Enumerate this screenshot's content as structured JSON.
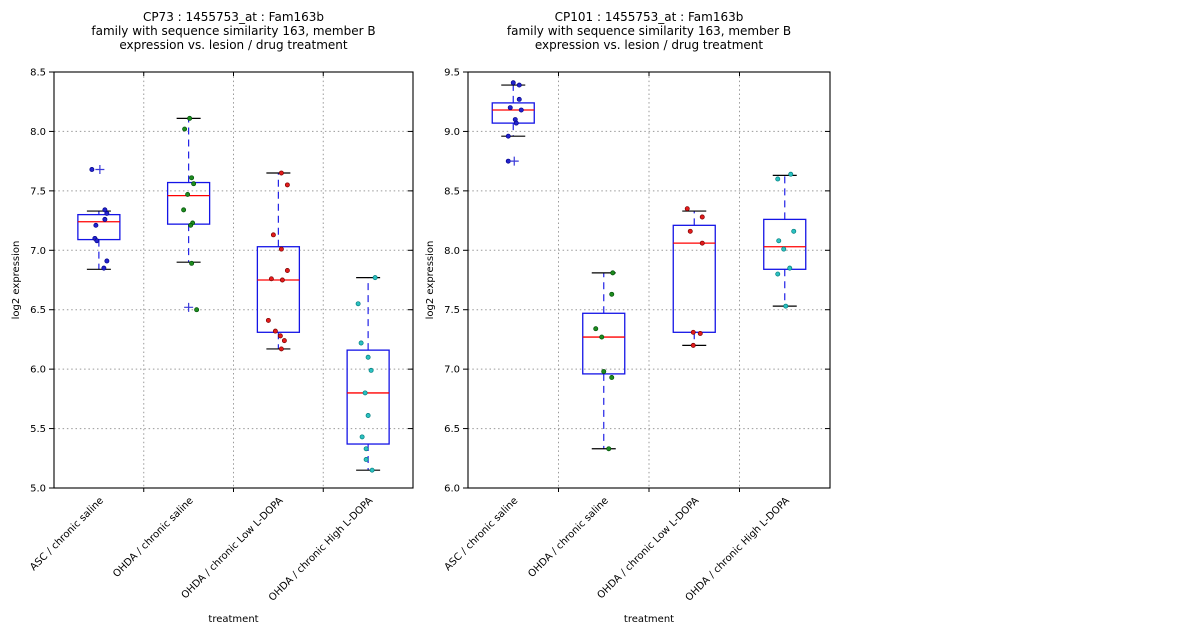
{
  "figure": {
    "background": "#ffffff",
    "xlabel": "treatment",
    "ylabel": "log2 expression"
  },
  "style": {
    "box_color": "#1414e6",
    "median_color": "#ff0000",
    "whisker_color": "#2222e6",
    "cap_color": "#000000",
    "flier_color": "#3a3ad9",
    "grid_color": "#9a9a9a",
    "frame_color": "#000000"
  },
  "chart_data": [
    {
      "type": "boxplot-scatter",
      "panel_id": "CP73",
      "title_lines": [
        "CP73 : 1455753_at : Fam163b",
        "family with sequence similarity 163, member B",
        "expression vs. lesion / drug treatment"
      ],
      "xlabel": "treatment",
      "ylabel": "log2 expression",
      "ylim": [
        5.0,
        8.5
      ],
      "ytick_step": 0.5,
      "grid": true,
      "categories": [
        "ASC / chronic saline",
        "OHDA / chronic saline",
        "OHDA / chronic Low L-DOPA",
        "OHDA / chronic High L-DOPA"
      ],
      "groups": [
        {
          "label": "ASC / chronic saline",
          "point_color": "#2323cc",
          "point_edge": "#00008b",
          "box": {
            "whisker_low": 6.84,
            "q1": 7.09,
            "median": 7.24,
            "q3": 7.3,
            "whisker_high": 7.33
          },
          "outliers_plus": [
            {
              "v": 7.68,
              "dx": 1
            }
          ],
          "points": [
            {
              "v": 7.68,
              "dx": -7
            },
            {
              "v": 7.34,
              "dx": 6
            },
            {
              "v": 7.31,
              "dx": 8
            },
            {
              "v": 7.26,
              "dx": 6
            },
            {
              "v": 7.21,
              "dx": -3
            },
            {
              "v": 7.1,
              "dx": -4
            },
            {
              "v": 7.08,
              "dx": -2
            },
            {
              "v": 6.91,
              "dx": 8
            },
            {
              "v": 6.85,
              "dx": 5
            }
          ]
        },
        {
          "label": "OHDA / chronic saline",
          "point_color": "#1e8c1e",
          "point_edge": "#00500a",
          "box": {
            "whisker_low": 6.9,
            "q1": 7.22,
            "median": 7.46,
            "q3": 7.57,
            "whisker_high": 8.11
          },
          "outliers_plus": [
            {
              "v": 6.52,
              "dx": 0
            }
          ],
          "points": [
            {
              "v": 8.11,
              "dx": 1
            },
            {
              "v": 8.02,
              "dx": -4
            },
            {
              "v": 7.61,
              "dx": 3
            },
            {
              "v": 7.56,
              "dx": 5
            },
            {
              "v": 7.47,
              "dx": -1
            },
            {
              "v": 7.34,
              "dx": -5
            },
            {
              "v": 7.23,
              "dx": 4
            },
            {
              "v": 7.21,
              "dx": 2
            },
            {
              "v": 6.89,
              "dx": 3
            },
            {
              "v": 6.5,
              "dx": 8
            }
          ]
        },
        {
          "label": "OHDA / chronic Low L-DOPA",
          "point_color": "#e31b1b",
          "point_edge": "#7a0000",
          "box": {
            "whisker_low": 6.17,
            "q1": 6.31,
            "median": 6.75,
            "q3": 7.03,
            "whisker_high": 7.65
          },
          "outliers_plus": [],
          "points": [
            {
              "v": 7.65,
              "dx": 3
            },
            {
              "v": 7.55,
              "dx": 9
            },
            {
              "v": 7.13,
              "dx": -5
            },
            {
              "v": 7.01,
              "dx": 3
            },
            {
              "v": 6.83,
              "dx": 9
            },
            {
              "v": 6.76,
              "dx": -7
            },
            {
              "v": 6.75,
              "dx": 4
            },
            {
              "v": 6.41,
              "dx": -10
            },
            {
              "v": 6.32,
              "dx": -3
            },
            {
              "v": 6.28,
              "dx": 2
            },
            {
              "v": 6.24,
              "dx": 6
            },
            {
              "v": 6.17,
              "dx": 3
            }
          ]
        },
        {
          "label": "OHDA / chronic High L-DOPA",
          "point_color": "#2cc1c1",
          "point_edge": "#007d7d",
          "box": {
            "whisker_low": 5.15,
            "q1": 5.37,
            "median": 5.8,
            "q3": 6.16,
            "whisker_high": 6.77
          },
          "outliers_plus": [],
          "points": [
            {
              "v": 6.77,
              "dx": 7
            },
            {
              "v": 6.55,
              "dx": -10
            },
            {
              "v": 6.22,
              "dx": -7
            },
            {
              "v": 6.1,
              "dx": 0
            },
            {
              "v": 5.99,
              "dx": 3
            },
            {
              "v": 5.8,
              "dx": -3
            },
            {
              "v": 5.61,
              "dx": 0
            },
            {
              "v": 5.43,
              "dx": -6
            },
            {
              "v": 5.33,
              "dx": -2
            },
            {
              "v": 5.24,
              "dx": -2
            },
            {
              "v": 5.15,
              "dx": 4
            }
          ]
        }
      ]
    },
    {
      "type": "boxplot-scatter",
      "panel_id": "CP101",
      "title_lines": [
        "CP101 : 1455753_at : Fam163b",
        "family with sequence similarity 163, member B",
        "expression vs. lesion / drug treatment"
      ],
      "xlabel": "treatment",
      "ylabel": "log2 expression",
      "ylim": [
        6.0,
        9.5
      ],
      "ytick_step": 0.5,
      "grid": true,
      "categories": [
        "ASC / chronic saline",
        "OHDA / chronic saline",
        "OHDA / chronic Low L-DOPA",
        "OHDA / chronic High L-DOPA"
      ],
      "groups": [
        {
          "label": "ASC / chronic saline",
          "point_color": "#2323cc",
          "point_edge": "#00008b",
          "box": {
            "whisker_low": 8.96,
            "q1": 9.07,
            "median": 9.18,
            "q3": 9.24,
            "whisker_high": 9.39
          },
          "outliers_plus": [
            {
              "v": 8.75,
              "dx": 1
            }
          ],
          "points": [
            {
              "v": 9.41,
              "dx": 0
            },
            {
              "v": 9.39,
              "dx": 6
            },
            {
              "v": 9.27,
              "dx": 6
            },
            {
              "v": 9.2,
              "dx": -3
            },
            {
              "v": 9.18,
              "dx": 8
            },
            {
              "v": 9.1,
              "dx": 2
            },
            {
              "v": 9.07,
              "dx": 3
            },
            {
              "v": 8.96,
              "dx": -5
            },
            {
              "v": 8.75,
              "dx": -5
            }
          ]
        },
        {
          "label": "OHDA / chronic saline",
          "point_color": "#1e8c1e",
          "point_edge": "#00500a",
          "box": {
            "whisker_low": 6.33,
            "q1": 6.96,
            "median": 7.27,
            "q3": 7.47,
            "whisker_high": 7.81
          },
          "outliers_plus": [],
          "points": [
            {
              "v": 7.81,
              "dx": 9
            },
            {
              "v": 7.63,
              "dx": 8
            },
            {
              "v": 7.34,
              "dx": -8
            },
            {
              "v": 7.27,
              "dx": -2
            },
            {
              "v": 6.98,
              "dx": 0
            },
            {
              "v": 6.93,
              "dx": 8
            },
            {
              "v": 6.33,
              "dx": 5
            }
          ]
        },
        {
          "label": "OHDA / chronic Low L-DOPA",
          "point_color": "#e31b1b",
          "point_edge": "#7a0000",
          "box": {
            "whisker_low": 7.2,
            "q1": 7.31,
            "median": 8.06,
            "q3": 8.21,
            "whisker_high": 8.33
          },
          "outliers_plus": [],
          "points": [
            {
              "v": 8.35,
              "dx": -7
            },
            {
              "v": 8.28,
              "dx": 8
            },
            {
              "v": 8.16,
              "dx": -4
            },
            {
              "v": 8.06,
              "dx": 8
            },
            {
              "v": 7.31,
              "dx": -1
            },
            {
              "v": 7.3,
              "dx": 6
            },
            {
              "v": 7.2,
              "dx": -1
            }
          ]
        },
        {
          "label": "OHDA / chronic High L-DOPA",
          "point_color": "#2cc1c1",
          "point_edge": "#007d7d",
          "box": {
            "whisker_low": 7.53,
            "q1": 7.84,
            "median": 8.03,
            "q3": 8.26,
            "whisker_high": 8.63
          },
          "outliers_plus": [],
          "points": [
            {
              "v": 8.64,
              "dx": 6
            },
            {
              "v": 8.6,
              "dx": -7
            },
            {
              "v": 8.16,
              "dx": 9
            },
            {
              "v": 8.08,
              "dx": -6
            },
            {
              "v": 8.01,
              "dx": -1
            },
            {
              "v": 7.85,
              "dx": 5
            },
            {
              "v": 7.8,
              "dx": -7
            },
            {
              "v": 7.53,
              "dx": 1
            }
          ]
        }
      ]
    }
  ]
}
